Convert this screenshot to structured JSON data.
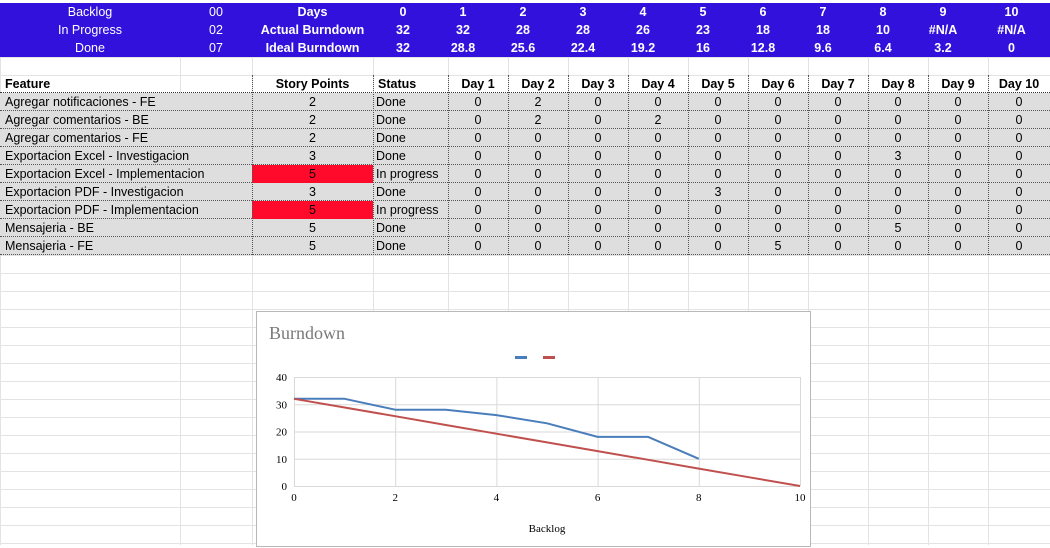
{
  "summary": {
    "status_labels": [
      "Backlog",
      "In Progress",
      "Done"
    ],
    "status_counts": [
      "00",
      "02",
      "07"
    ],
    "row_labels": [
      "Days",
      "Actual Burndown",
      "Ideal Burndown"
    ],
    "days": [
      "0",
      "1",
      "2",
      "3",
      "4",
      "5",
      "6",
      "7",
      "8",
      "9",
      "10"
    ],
    "actual": [
      "32",
      "32",
      "28",
      "28",
      "26",
      "23",
      "18",
      "18",
      "10",
      "#N/A",
      "#N/A"
    ],
    "ideal": [
      "32",
      "28.8",
      "25.6",
      "22.4",
      "19.2",
      "16",
      "12.8",
      "9.6",
      "6.4",
      "3.2",
      "0"
    ]
  },
  "table": {
    "headers": [
      "Feature",
      "Story Points",
      "Status",
      "Day 1",
      "Day 2",
      "Day 3",
      "Day 4",
      "Day 5",
      "Day 6",
      "Day 7",
      "Day 8",
      "Day 9",
      "Day 10"
    ],
    "rows": [
      {
        "feature": "Agregar notificaciones - FE",
        "points": "2",
        "status": "Done",
        "days": [
          "0",
          "2",
          "0",
          "0",
          "0",
          "0",
          "0",
          "0",
          "0",
          "0"
        ],
        "highlight": false
      },
      {
        "feature": "Agregar comentarios - BE",
        "points": "2",
        "status": "Done",
        "days": [
          "0",
          "2",
          "0",
          "2",
          "0",
          "0",
          "0",
          "0",
          "0",
          "0"
        ],
        "highlight": false
      },
      {
        "feature": "Agregar comentarios - FE",
        "points": "2",
        "status": "Done",
        "days": [
          "0",
          "0",
          "0",
          "0",
          "0",
          "0",
          "0",
          "0",
          "0",
          "0"
        ],
        "highlight": false
      },
      {
        "feature": "Exportacion Excel - Investigacion",
        "points": "3",
        "status": "Done",
        "days": [
          "0",
          "0",
          "0",
          "0",
          "0",
          "0",
          "0",
          "3",
          "0",
          "0"
        ],
        "highlight": false
      },
      {
        "feature": "Exportacion Excel - Implementacion",
        "points": "5",
        "status": "In progress",
        "days": [
          "0",
          "0",
          "0",
          "0",
          "0",
          "0",
          "0",
          "0",
          "0",
          "0"
        ],
        "highlight": true
      },
      {
        "feature": "Exportacion PDF - Investigacion",
        "points": "3",
        "status": "Done",
        "days": [
          "0",
          "0",
          "0",
          "0",
          "3",
          "0",
          "0",
          "0",
          "0",
          "0"
        ],
        "highlight": false
      },
      {
        "feature": "Exportacion PDF - Implementacion",
        "points": "5",
        "status": "In progress",
        "days": [
          "0",
          "0",
          "0",
          "0",
          "0",
          "0",
          "0",
          "0",
          "0",
          "0"
        ],
        "highlight": true
      },
      {
        "feature": "Mensajeria - BE",
        "points": "5",
        "status": "Done",
        "days": [
          "0",
          "0",
          "0",
          "0",
          "0",
          "0",
          "0",
          "5",
          "0",
          "0"
        ],
        "highlight": false
      },
      {
        "feature": "Mensajeria - FE",
        "points": "5",
        "status": "Done",
        "days": [
          "0",
          "0",
          "0",
          "0",
          "0",
          "5",
          "0",
          "0",
          "0",
          "0"
        ],
        "highlight": false
      }
    ],
    "highlight_color": "#ff0a2a"
  },
  "chart_data": {
    "type": "line",
    "title": "Burndown",
    "xlabel": "Backlog",
    "ylabel": "",
    "xlim": [
      0,
      10
    ],
    "ylim": [
      0,
      40
    ],
    "xticks": [
      0,
      2,
      4,
      6,
      8,
      10
    ],
    "yticks": [
      0,
      10,
      20,
      30,
      40
    ],
    "grid": true,
    "legend": "top-center",
    "series": [
      {
        "color": "#4a7ebb",
        "x": [
          0,
          1,
          2,
          3,
          4,
          5,
          6,
          7,
          8
        ],
        "values": [
          32,
          32,
          28,
          28,
          26,
          23,
          18,
          18,
          10
        ]
      },
      {
        "color": "#c0504d",
        "x": [
          0,
          1,
          2,
          3,
          4,
          5,
          6,
          7,
          8,
          9,
          10
        ],
        "values": [
          32,
          28.8,
          25.6,
          22.4,
          19.2,
          16,
          12.8,
          9.6,
          6.4,
          3.2,
          0
        ]
      }
    ]
  }
}
